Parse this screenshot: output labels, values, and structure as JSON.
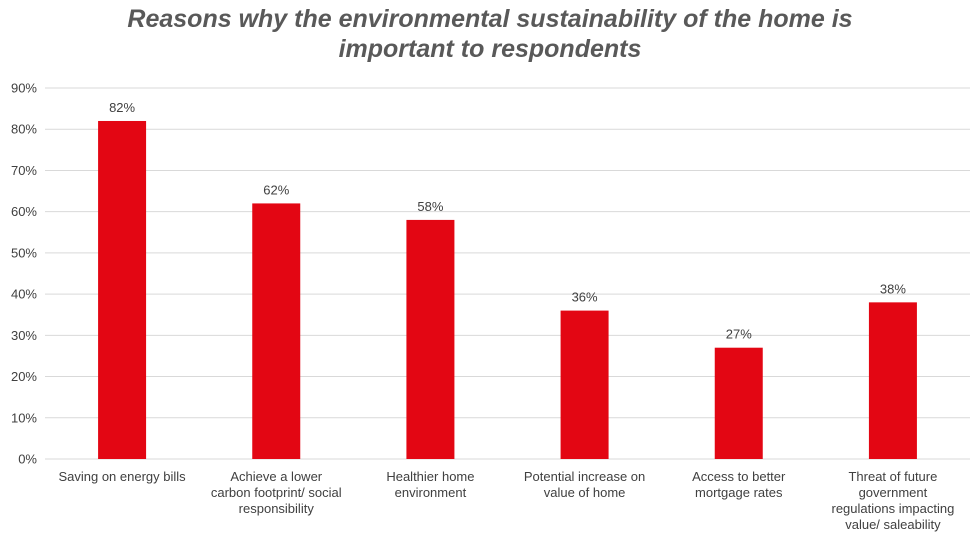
{
  "chart_data": {
    "type": "bar",
    "title_lines": [
      "Reasons why the environmental sustainability of the home is",
      "important to respondents"
    ],
    "categories": [
      [
        "Saving on energy bills"
      ],
      [
        "Achieve a lower",
        "carbon footprint/ social",
        "responsibility"
      ],
      [
        "Healthier home",
        "environment"
      ],
      [
        "Potential increase on",
        "value of home"
      ],
      [
        "Access to better",
        "mortgage rates"
      ],
      [
        "Threat of future",
        "government",
        "regulations impacting",
        "value/ saleability"
      ]
    ],
    "values": [
      82,
      62,
      58,
      36,
      27,
      38
    ],
    "data_labels": [
      "82%",
      "62%",
      "58%",
      "36%",
      "27%",
      "38%"
    ],
    "y_ticks": [
      "0%",
      "10%",
      "20%",
      "30%",
      "40%",
      "50%",
      "60%",
      "70%",
      "80%",
      "90%"
    ],
    "ylim": [
      0,
      90
    ],
    "grid": true,
    "legend": "none",
    "colors": {
      "bar": "#e30613",
      "grid": "#d9d9d9",
      "text": "#404040",
      "title": "#595959"
    }
  }
}
